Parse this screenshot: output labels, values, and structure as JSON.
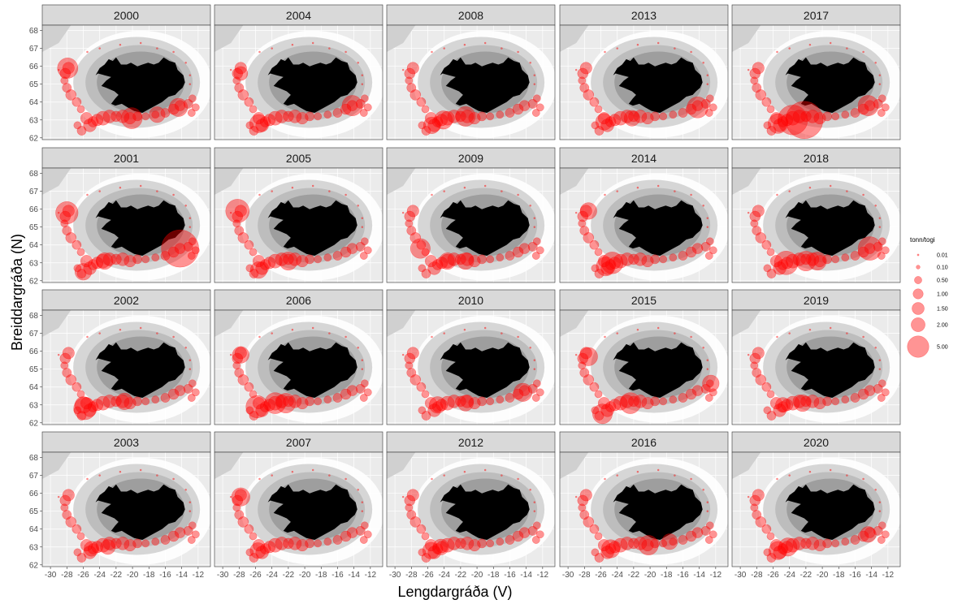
{
  "chart_data": {
    "type": "scatter",
    "facet_titles": [
      "2000",
      "2004",
      "2008",
      "2013",
      "2017",
      "2001",
      "2005",
      "2009",
      "2014",
      "2018",
      "2002",
      "2006",
      "2010",
      "2015",
      "2019",
      "2003",
      "2007",
      "2012",
      "2016",
      "2020"
    ],
    "xlabel": "Lengdargráða (V)",
    "ylabel": "Breiddargráða (N)",
    "xlim": [
      -31,
      -10.5
    ],
    "ylim": [
      61.9,
      68.3
    ],
    "x_ticks": [
      -30,
      -28,
      -26,
      -24,
      -22,
      -20,
      -18,
      -16,
      -14,
      -12
    ],
    "x_tick_labels": [
      "-30",
      "-28",
      "-26",
      "-24",
      "-22",
      "-20",
      "-18",
      "-16",
      "-14",
      "-12"
    ],
    "y_ticks": [
      62,
      63,
      64,
      65,
      66,
      67,
      68
    ],
    "y_tick_labels": [
      "62",
      "63",
      "64",
      "65",
      "66",
      "67",
      "68"
    ],
    "colors": {
      "point": "#ff0000",
      "land": "#000000",
      "panel_bg": "#ebebeb",
      "strip_bg": "#d9d9d9",
      "shelf": "#ffffff",
      "depth": "#9e9e9e"
    },
    "legend": {
      "title": "tonn/togi",
      "entries": [
        {
          "label": "0.01",
          "value": 0.01
        },
        {
          "label": "0.10",
          "value": 0.1
        },
        {
          "label": "0.50",
          "value": 0.5
        },
        {
          "label": "1.00",
          "value": 1.0
        },
        {
          "label": "1.50",
          "value": 1.5
        },
        {
          "label": "2.00",
          "value": 2.0
        },
        {
          "label": "5.00",
          "value": 5.0
        }
      ]
    },
    "base_points": [
      [
        -27.8,
        65.9,
        0.5
      ],
      [
        -28.2,
        65.6,
        0.4
      ],
      [
        -28.3,
        65.2,
        0.2
      ],
      [
        -28.0,
        64.8,
        0.3
      ],
      [
        -27.5,
        64.4,
        0.4
      ],
      [
        -26.8,
        64.0,
        0.3
      ],
      [
        -26.3,
        63.6,
        0.2
      ],
      [
        -25.6,
        63.1,
        0.5
      ],
      [
        -25.2,
        62.7,
        0.6
      ],
      [
        -24.8,
        62.9,
        0.4
      ],
      [
        -24.3,
        63.0,
        0.5
      ],
      [
        -23.6,
        63.1,
        0.7
      ],
      [
        -22.8,
        63.2,
        0.6
      ],
      [
        -22.0,
        63.2,
        0.4
      ],
      [
        -21.2,
        63.2,
        0.6
      ],
      [
        -20.3,
        63.1,
        0.5
      ],
      [
        -19.4,
        63.2,
        0.3
      ],
      [
        -18.4,
        63.2,
        0.2
      ],
      [
        -17.2,
        63.3,
        0.2
      ],
      [
        -16.0,
        63.4,
        0.3
      ],
      [
        -15.0,
        63.6,
        0.4
      ],
      [
        -14.2,
        63.8,
        0.4
      ],
      [
        -13.2,
        63.9,
        0.3
      ],
      [
        -12.7,
        64.2,
        0.2
      ],
      [
        -12.3,
        63.7,
        0.2
      ],
      [
        -12.8,
        63.4,
        0.2
      ],
      [
        -26.2,
        62.4,
        0.3
      ],
      [
        -26.7,
        62.7,
        0.2
      ],
      [
        -24.0,
        67.0,
        0.01
      ],
      [
        -21.5,
        67.2,
        0.01
      ],
      [
        -19.0,
        67.3,
        0.01
      ],
      [
        -17.0,
        67.0,
        0.01
      ],
      [
        -15.0,
        66.8,
        0.01
      ],
      [
        -13.5,
        66.2,
        0.01
      ],
      [
        -13.0,
        65.5,
        0.01
      ],
      [
        -29.0,
        65.8,
        0.01
      ],
      [
        -25.5,
        66.8,
        0.01
      ],
      [
        -13.0,
        65.0,
        0.01
      ]
    ],
    "year_overrides": {
      "2000": [
        [
          -27.9,
          65.9,
          1.5
        ],
        [
          -20.1,
          63.1,
          1.6
        ],
        [
          -14.4,
          63.7,
          1.2
        ],
        [
          -17.0,
          63.3,
          0.9
        ]
      ],
      "2001": [
        [
          -28.0,
          65.8,
          1.8
        ],
        [
          -14.2,
          63.8,
          5.0
        ],
        [
          -26.0,
          62.5,
          1.0
        ],
        [
          -23.4,
          63.1,
          1.0
        ]
      ],
      "2002": [
        [
          -25.8,
          62.8,
          1.8
        ],
        [
          -26.0,
          63.0,
          1.0
        ],
        [
          -21.0,
          63.2,
          1.0
        ]
      ],
      "2003": [
        [
          -25.0,
          62.9,
          0.8
        ],
        [
          -23.0,
          63.0,
          0.8
        ]
      ],
      "2004": [
        [
          -14.2,
          63.8,
          1.5
        ],
        [
          -25.6,
          62.8,
          1.2
        ],
        [
          -27.8,
          65.6,
          0.7
        ]
      ],
      "2005": [
        [
          -28.2,
          65.9,
          2.0
        ],
        [
          -22.0,
          63.1,
          1.2
        ],
        [
          -25.6,
          62.6,
          1.0
        ]
      ],
      "2006": [
        [
          -25.8,
          62.9,
          1.8
        ],
        [
          -23.6,
          63.1,
          1.6
        ],
        [
          -22.3,
          63.1,
          1.4
        ],
        [
          -27.8,
          65.8,
          1.0
        ]
      ],
      "2007": [
        [
          -27.8,
          65.8,
          1.2
        ],
        [
          -25.7,
          62.8,
          0.9
        ]
      ],
      "2008": [
        [
          -24.1,
          63.0,
          1.2
        ],
        [
          -21.4,
          63.2,
          1.4
        ],
        [
          -25.5,
          62.7,
          1.0
        ]
      ],
      "2009": [
        [
          -26.9,
          63.8,
          1.4
        ],
        [
          -21.4,
          63.1,
          1.0
        ],
        [
          -23.6,
          63.1,
          1.0
        ]
      ],
      "2010": [
        [
          -14.4,
          63.7,
          1.2
        ],
        [
          -24.8,
          63.0,
          1.0
        ],
        [
          -21.4,
          63.1,
          0.9
        ]
      ],
      "2012": [
        [
          -25.6,
          62.8,
          1.0
        ],
        [
          -24.4,
          63.0,
          0.9
        ]
      ],
      "2013": [
        [
          -14.2,
          63.7,
          1.6
        ],
        [
          -25.6,
          62.9,
          1.0
        ],
        [
          -22.2,
          63.1,
          0.9
        ]
      ],
      "2014": [
        [
          -24.6,
          63.0,
          1.7
        ],
        [
          -27.5,
          65.9,
          1.0
        ],
        [
          -25.4,
          62.8,
          1.3
        ]
      ],
      "2015": [
        [
          -22.4,
          63.1,
          1.6
        ],
        [
          -25.8,
          62.5,
          1.4
        ],
        [
          -27.5,
          65.7,
          1.2
        ],
        [
          -12.6,
          64.2,
          1.0
        ]
      ],
      "2016": [
        [
          -20.2,
          63.1,
          1.4
        ],
        [
          -24.8,
          62.9,
          1.2
        ],
        [
          -17.6,
          63.3,
          0.9
        ]
      ],
      "2017": [
        [
          -22.2,
          63.0,
          5.0
        ],
        [
          -23.6,
          63.0,
          3.2
        ],
        [
          -14.4,
          63.8,
          1.5
        ],
        [
          -25.4,
          62.8,
          1.4
        ]
      ],
      "2018": [
        [
          -24.4,
          63.0,
          2.0
        ],
        [
          -14.2,
          63.8,
          2.0
        ],
        [
          -22.0,
          63.1,
          1.4
        ],
        [
          -20.6,
          63.1,
          1.2
        ]
      ],
      "2019": [
        [
          -22.4,
          63.1,
          1.0
        ],
        [
          -24.8,
          63.0,
          0.8
        ]
      ],
      "2020": [
        [
          -25.4,
          62.8,
          1.2
        ],
        [
          -24.2,
          63.0,
          1.2
        ],
        [
          -14.4,
          63.7,
          0.9
        ]
      ]
    }
  }
}
